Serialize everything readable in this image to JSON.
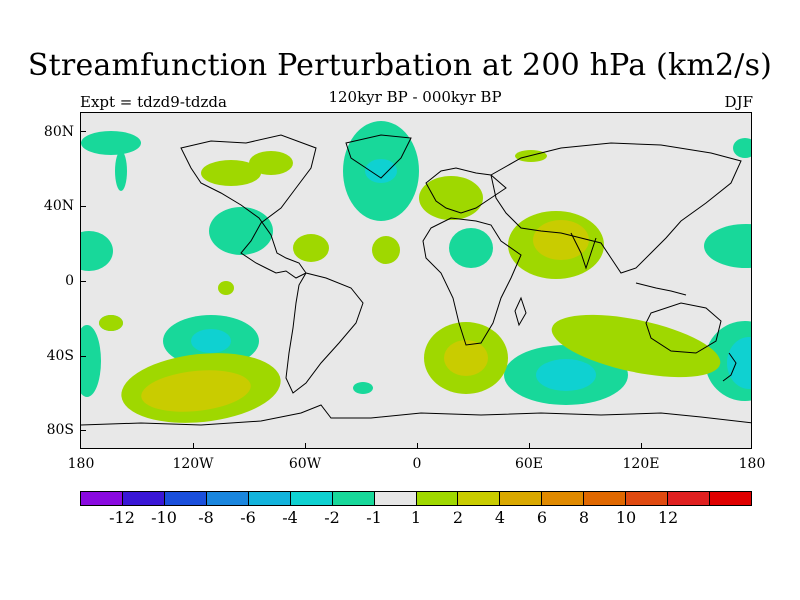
{
  "title": "Streamfunction Perturbation at 200 hPa (km2/s)",
  "subtitle": "120kyr BP - 000kyr BP",
  "experiment": "Expt = tdzd9-tdzda",
  "season": "DJF",
  "lat_ticks": [
    "80N",
    "40N",
    "0",
    "40S",
    "80S"
  ],
  "lon_ticks": [
    "180",
    "120W",
    "60W",
    "0",
    "60E",
    "120E",
    "180"
  ],
  "colorbar": {
    "colors": [
      "#8a0ae0",
      "#3a17d6",
      "#1a4fdc",
      "#1a86de",
      "#12b3dc",
      "#0fd1d1",
      "#18d89a",
      "#e6e6e6",
      "#9fd800",
      "#c9cc00",
      "#d9a800",
      "#e08a00",
      "#e06800",
      "#e04a10",
      "#e02020",
      "#e00000"
    ],
    "labels": [
      "-12",
      "-10",
      "-8",
      "-6",
      "-4",
      "-2",
      "-1",
      "1",
      "2",
      "4",
      "6",
      "8",
      "10",
      "12"
    ]
  },
  "legend_colors": {
    "neg1": "#18d89a",
    "neg2": "#0fd1d1",
    "pos1": "#9fd800",
    "pos2": "#c9cc00",
    "background": "#e8e8e8"
  }
}
